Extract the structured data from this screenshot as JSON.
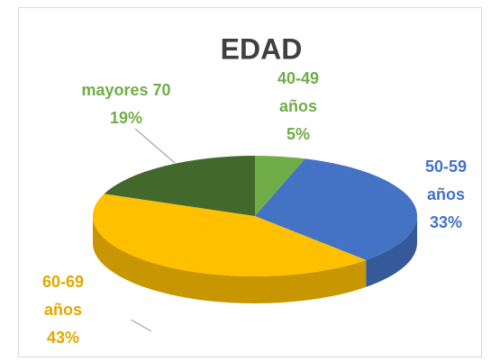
{
  "chart_data": {
    "type": "pie3d",
    "title": "EDAD",
    "categories": [
      "40-49 años",
      "50-59 años",
      "60-69 años",
      "mayores 70"
    ],
    "values": [
      5,
      33,
      43,
      19
    ],
    "value_labels": [
      "5%",
      "33%",
      "43%",
      "19%"
    ],
    "colors": [
      "#70ad47",
      "#4472c4",
      "#ffc000",
      "#43682b"
    ],
    "label_colors": [
      "#70ad47",
      "#4472c4",
      "#e2a800",
      "#70ad47"
    ]
  }
}
